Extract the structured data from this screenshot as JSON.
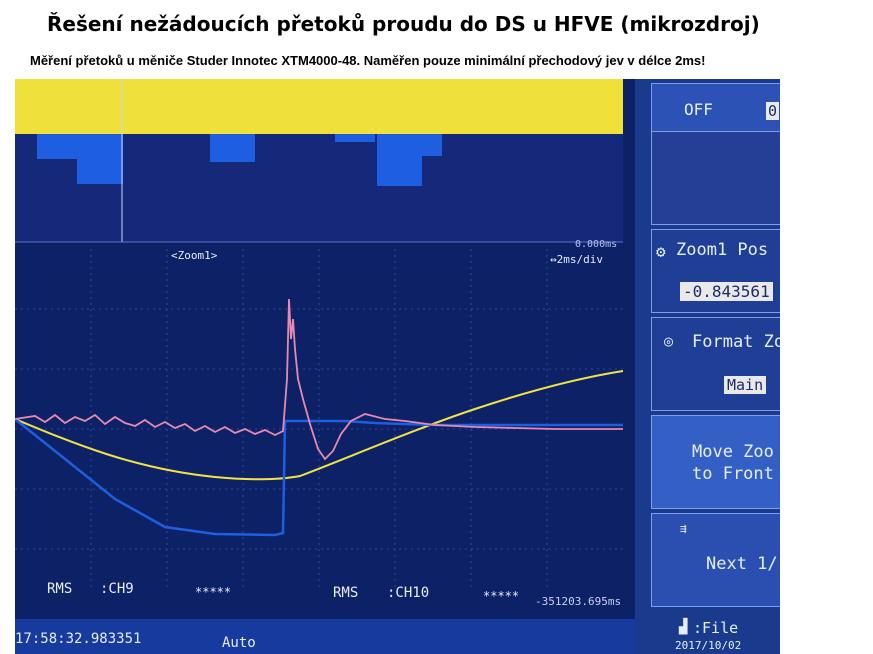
{
  "slide": {
    "title": "Řešení nežádoucích přetoků proudu do DS u HFVE (mikrozdroj)",
    "subtitle": "Měření přetoků u měniče Studer Innotec XTM4000-48. Naměřen pouze minimální přechodový jev v délce 2ms!"
  },
  "scope": {
    "zoom_label": "<Zoom1>",
    "time_offset": "0.000ms",
    "time_div": "↔2ms/div",
    "meas": [
      {
        "label": "RMS",
        "channel": ":CH9",
        "value": "*****"
      },
      {
        "label": "RMS",
        "channel": ":CH10",
        "value": "*****"
      }
    ],
    "cursor_readout": "-351203.695ms",
    "timestamp": "17:58:32.983351",
    "trigger_mode": "Auto",
    "file_label": "File",
    "date": "2017/10/02"
  },
  "side_menu": {
    "off_label": "OFF",
    "off_value": "0",
    "zoom_pos_label": "Zoom1 Pos",
    "zoom_pos_value": "-0.843561",
    "format_label": "Format Zo",
    "format_value": "Main",
    "move_label_1": "Move Zoo",
    "move_label_2": "to Front",
    "next_label": "Next 1/"
  },
  "colors": {
    "pink_trace": "#e88ab0",
    "yellow_trace": "#f2e24a",
    "blue_trace": "#1d5fe0",
    "screen_bg": "#0d2166"
  }
}
